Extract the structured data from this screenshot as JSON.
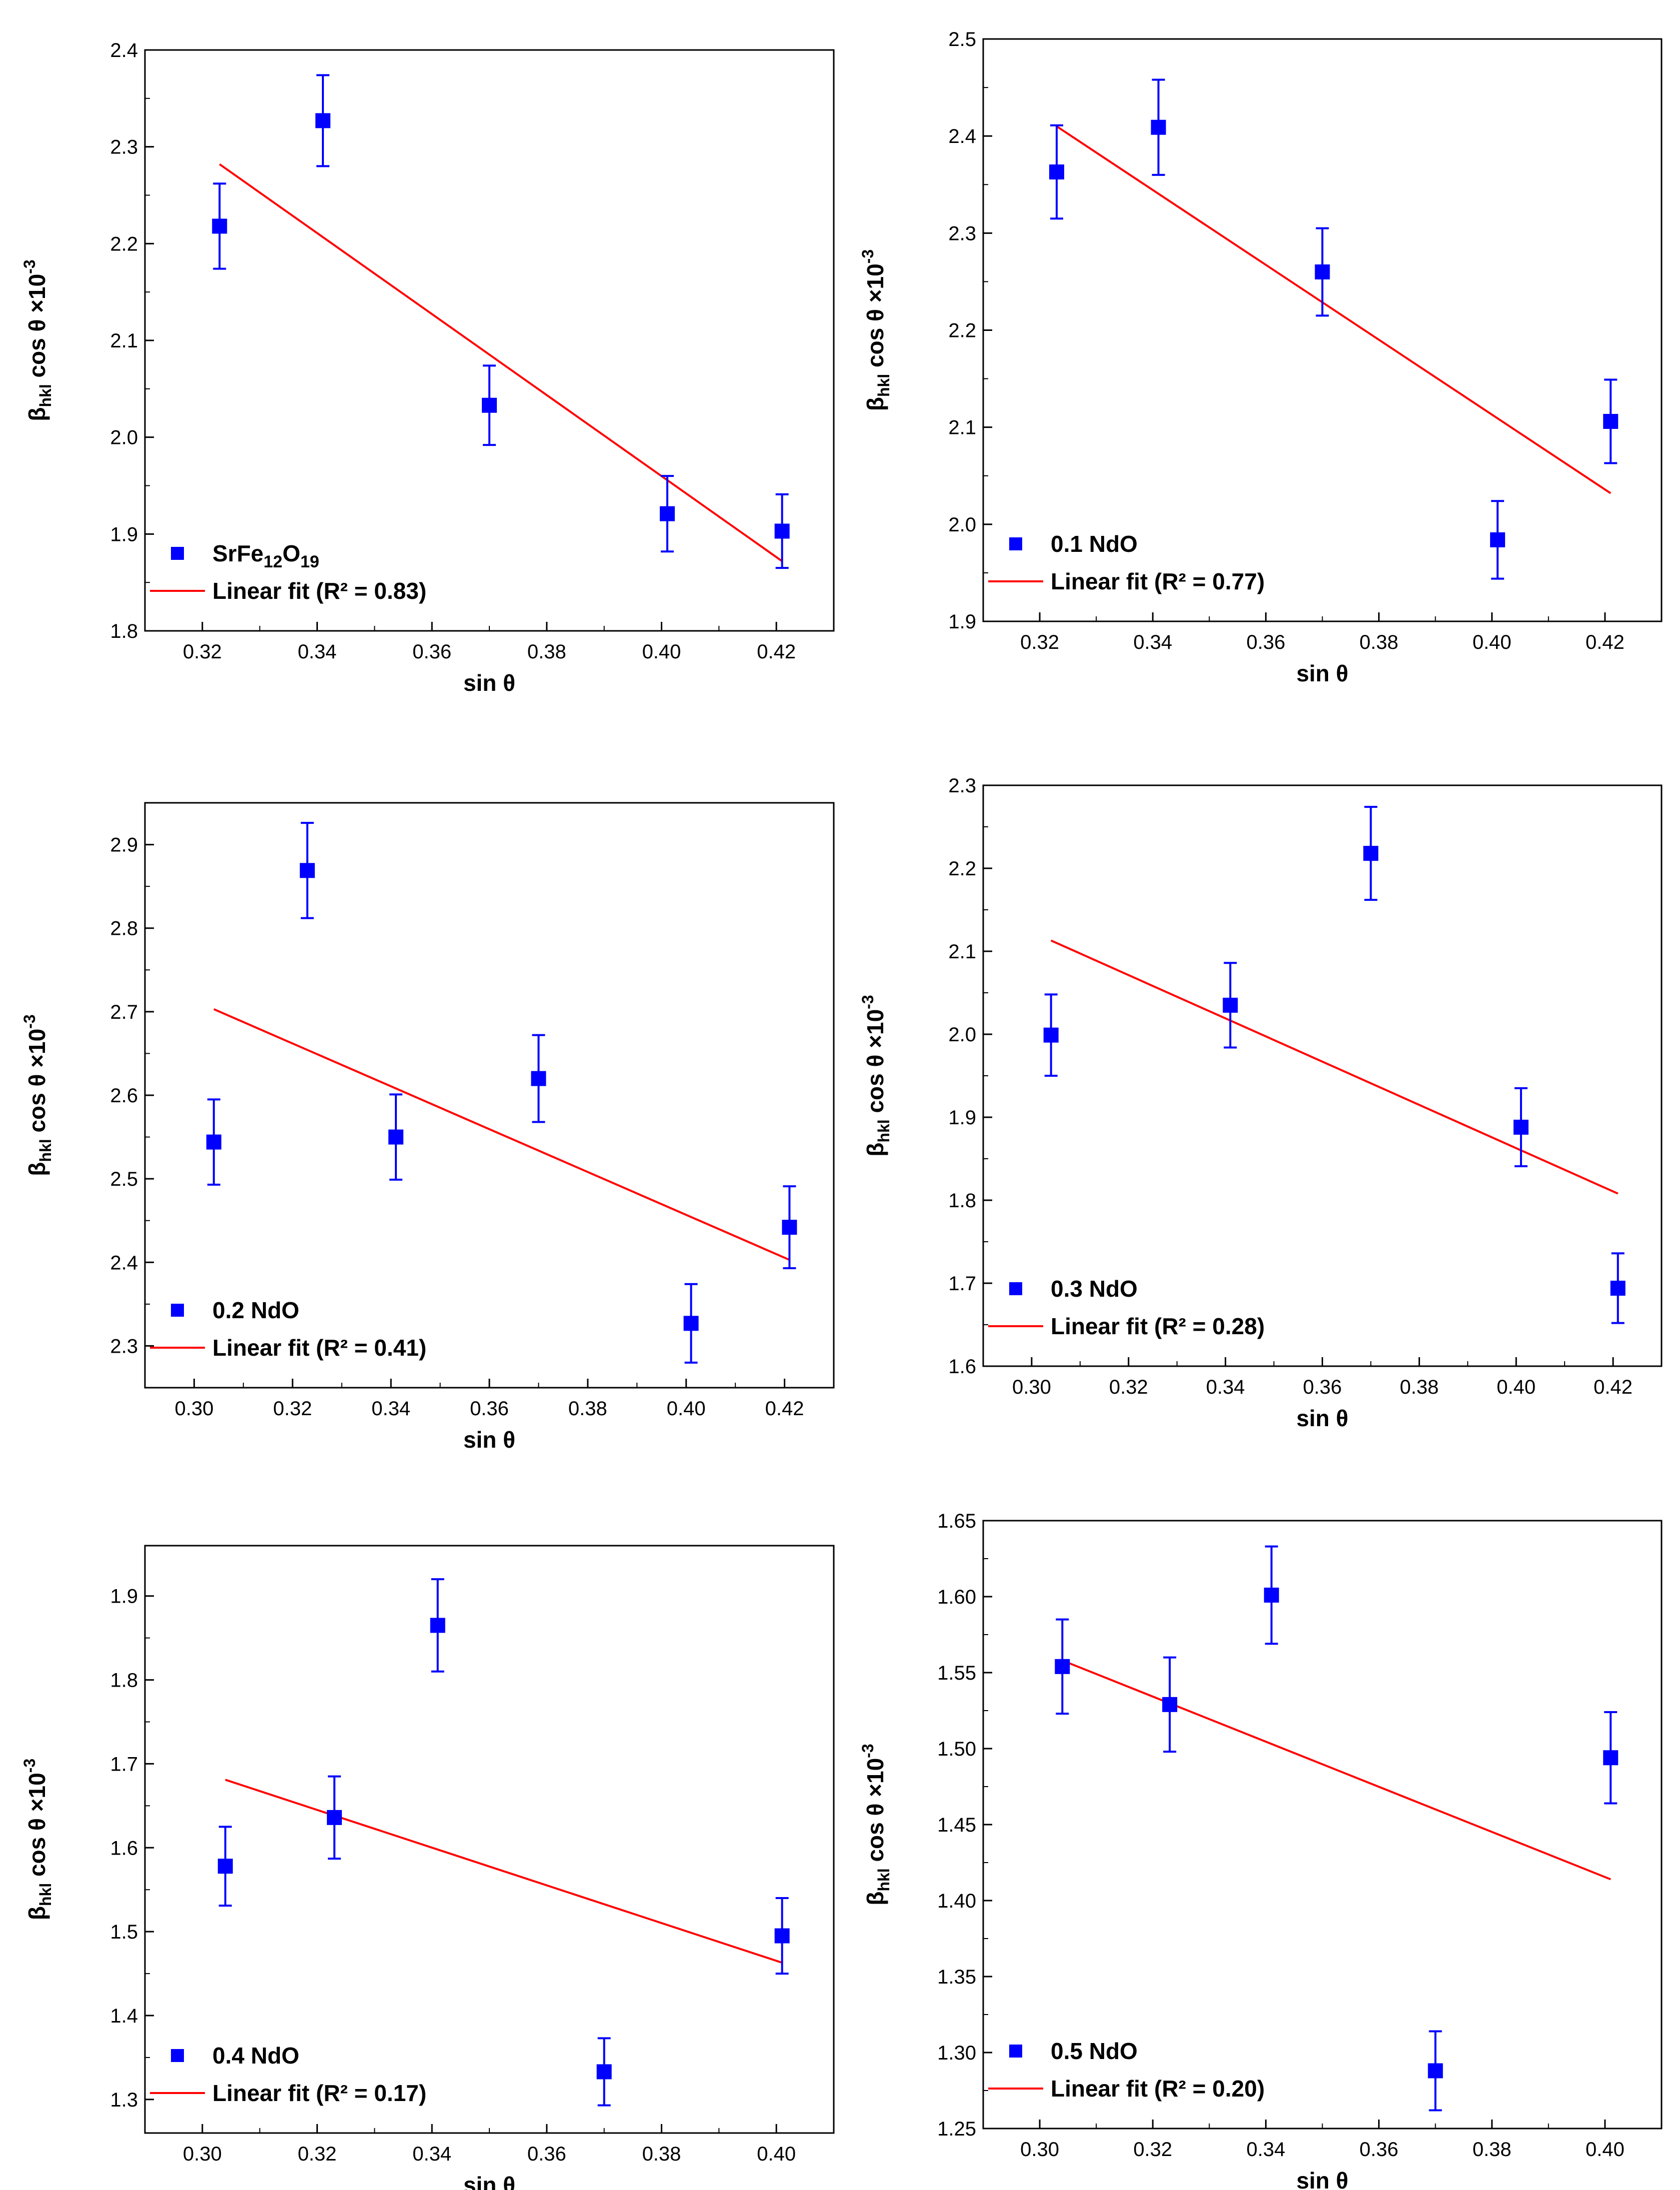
{
  "colors": {
    "points": "#0000ff",
    "fit": "#ff0000",
    "axis": "#000000"
  },
  "chart_data": [
    {
      "type": "scatter",
      "xlabel": "sin θ",
      "ylabel": "β_hkl cos θ ×10^-3",
      "xlim": [
        0.31,
        0.43
      ],
      "ylim": [
        1.8,
        2.4
      ],
      "xticks": [
        "0.32",
        "0.34",
        "0.36",
        "0.38",
        "0.40",
        "0.42"
      ],
      "yticks": [
        "1.8",
        "1.9",
        "2.0",
        "2.1",
        "2.2",
        "2.3",
        "2.4"
      ],
      "series": [
        {
          "name": "SrFe12O19",
          "x": [
            0.323,
            0.341,
            0.37,
            0.401,
            0.421
          ],
          "y": [
            2.218,
            2.327,
            2.033,
            1.921,
            1.903
          ],
          "err": [
            0.044,
            0.047,
            0.041,
            0.039,
            0.038
          ]
        },
        {
          "name": "Linear fit (R² = 0.83)",
          "x": [
            0.323,
            0.421
          ],
          "y": [
            2.282,
            1.872
          ]
        }
      ],
      "legend": {
        "position": "bottom-left",
        "points_label": "SrFe",
        "points_sub1": "12",
        "points_mid": "O",
        "points_sub2": "19",
        "fit_label": "Linear fit (R² = 0.83)"
      }
    },
    {
      "type": "scatter",
      "xlabel": "sin θ",
      "ylabel": "β_hkl cos θ ×10^-3",
      "xlim": [
        0.31,
        0.43
      ],
      "ylim": [
        1.9,
        2.5
      ],
      "xticks": [
        "0.32",
        "0.34",
        "0.36",
        "0.38",
        "0.40",
        "0.42"
      ],
      "yticks": [
        "1.9",
        "2.0",
        "2.1",
        "2.2",
        "2.3",
        "2.4",
        "2.5"
      ],
      "series": [
        {
          "name": "0.1 NdO",
          "x": [
            0.323,
            0.341,
            0.37,
            0.401,
            0.421
          ],
          "y": [
            2.363,
            2.409,
            2.26,
            1.984,
            2.106
          ],
          "err": [
            0.048,
            0.049,
            0.045,
            0.04,
            0.043
          ]
        },
        {
          "name": "Linear fit (R² = 0.77)",
          "x": [
            0.323,
            0.421
          ],
          "y": [
            2.41,
            2.032
          ]
        }
      ],
      "legend": {
        "position": "bottom-left",
        "points_label": "0.1 NdO",
        "fit_label": "Linear fit (R² = 0.77)"
      }
    },
    {
      "type": "scatter",
      "xlabel": "sin θ",
      "ylabel": "β_hkl cos θ ×10^-3",
      "xlim": [
        0.29,
        0.43
      ],
      "ylim": [
        2.25,
        2.95
      ],
      "xticks": [
        "0.30",
        "0.32",
        "0.34",
        "0.36",
        "0.38",
        "0.40",
        "0.42"
      ],
      "yticks": [
        "2.3",
        "2.4",
        "2.5",
        "2.6",
        "2.7",
        "2.8",
        "2.9"
      ],
      "series": [
        {
          "name": "0.2 NdO",
          "x": [
            0.304,
            0.323,
            0.341,
            0.37,
            0.401,
            0.421
          ],
          "y": [
            2.544,
            2.869,
            2.55,
            2.62,
            2.327,
            2.442
          ],
          "err": [
            0.051,
            0.057,
            0.051,
            0.052,
            0.047,
            0.049
          ]
        },
        {
          "name": "Linear fit (R² = 0.41)",
          "x": [
            0.304,
            0.421
          ],
          "y": [
            2.703,
            2.403
          ]
        }
      ],
      "legend": {
        "position": "bottom-left",
        "points_label": "0.2 NdO",
        "fit_label": "Linear fit (R² = 0.41)"
      }
    },
    {
      "type": "scatter",
      "xlabel": "sin θ",
      "ylabel": "β_hkl cos θ ×10^-3",
      "xlim": [
        0.29,
        0.43
      ],
      "ylim": [
        1.6,
        2.3
      ],
      "xticks": [
        "0.30",
        "0.32",
        "0.34",
        "0.36",
        "0.38",
        "0.40",
        "0.42"
      ],
      "yticks": [
        "1.6",
        "1.7",
        "1.8",
        "1.9",
        "2.0",
        "2.1",
        "2.2",
        "2.3"
      ],
      "series": [
        {
          "name": "0.3 NdO",
          "x": [
            0.304,
            0.341,
            0.37,
            0.401,
            0.421
          ],
          "y": [
            1.999,
            2.035,
            2.218,
            1.888,
            1.694
          ],
          "err": [
            0.049,
            0.051,
            0.056,
            0.047,
            0.042
          ]
        },
        {
          "name": "Linear fit (R² = 0.28)",
          "x": [
            0.304,
            0.421
          ],
          "y": [
            2.113,
            1.808
          ]
        }
      ],
      "legend": {
        "position": "bottom-left",
        "points_label": "0.3 NdO",
        "fit_label": "Linear fit (R² = 0.28)"
      }
    },
    {
      "type": "scatter",
      "xlabel": "sin θ",
      "ylabel": "β_hkl cos θ ×10^-3",
      "xlim": [
        0.29,
        0.41
      ],
      "ylim": [
        1.26,
        1.96
      ],
      "xticks": [
        "0.30",
        "0.32",
        "0.34",
        "0.36",
        "0.38",
        "0.40"
      ],
      "yticks": [
        "1.3",
        "1.4",
        "1.5",
        "1.6",
        "1.7",
        "1.8",
        "1.9"
      ],
      "series": [
        {
          "name": "0.4 NdO",
          "x": [
            0.304,
            0.323,
            0.341,
            0.37,
            0.401
          ],
          "y": [
            1.578,
            1.636,
            1.865,
            1.333,
            1.495
          ],
          "err": [
            0.047,
            0.049,
            0.055,
            0.04,
            0.045
          ]
        },
        {
          "name": "Linear fit (R² = 0.17)",
          "x": [
            0.304,
            0.401
          ],
          "y": [
            1.681,
            1.463
          ]
        }
      ],
      "legend": {
        "position": "bottom-left",
        "points_label": "0.4 NdO",
        "fit_label": "Linear fit (R² = 0.17)"
      }
    },
    {
      "type": "scatter",
      "xlabel": "sin θ",
      "ylabel": "β_hkl cos θ ×10^-3",
      "xlim": [
        0.29,
        0.41
      ],
      "ylim": [
        1.25,
        1.65
      ],
      "xticks": [
        "0.30",
        "0.32",
        "0.34",
        "0.36",
        "0.38",
        "0.40"
      ],
      "yticks": [
        "1.25",
        "1.30",
        "1.35",
        "1.40",
        "1.45",
        "1.50",
        "1.55",
        "1.60",
        "1.65"
      ],
      "series": [
        {
          "name": "0.5 NdO",
          "x": [
            0.304,
            0.323,
            0.341,
            0.37,
            0.401
          ],
          "y": [
            1.554,
            1.529,
            1.601,
            1.288,
            1.494
          ],
          "err": [
            0.031,
            0.031,
            0.032,
            0.026,
            0.03
          ]
        },
        {
          "name": "Linear fit (R² = 0.20)",
          "x": [
            0.304,
            0.401
          ],
          "y": [
            1.558,
            1.414
          ]
        }
      ],
      "legend": {
        "position": "bottom-left",
        "points_label": "0.5 NdO",
        "fit_label": "Linear fit (R² = 0.20)"
      }
    }
  ]
}
